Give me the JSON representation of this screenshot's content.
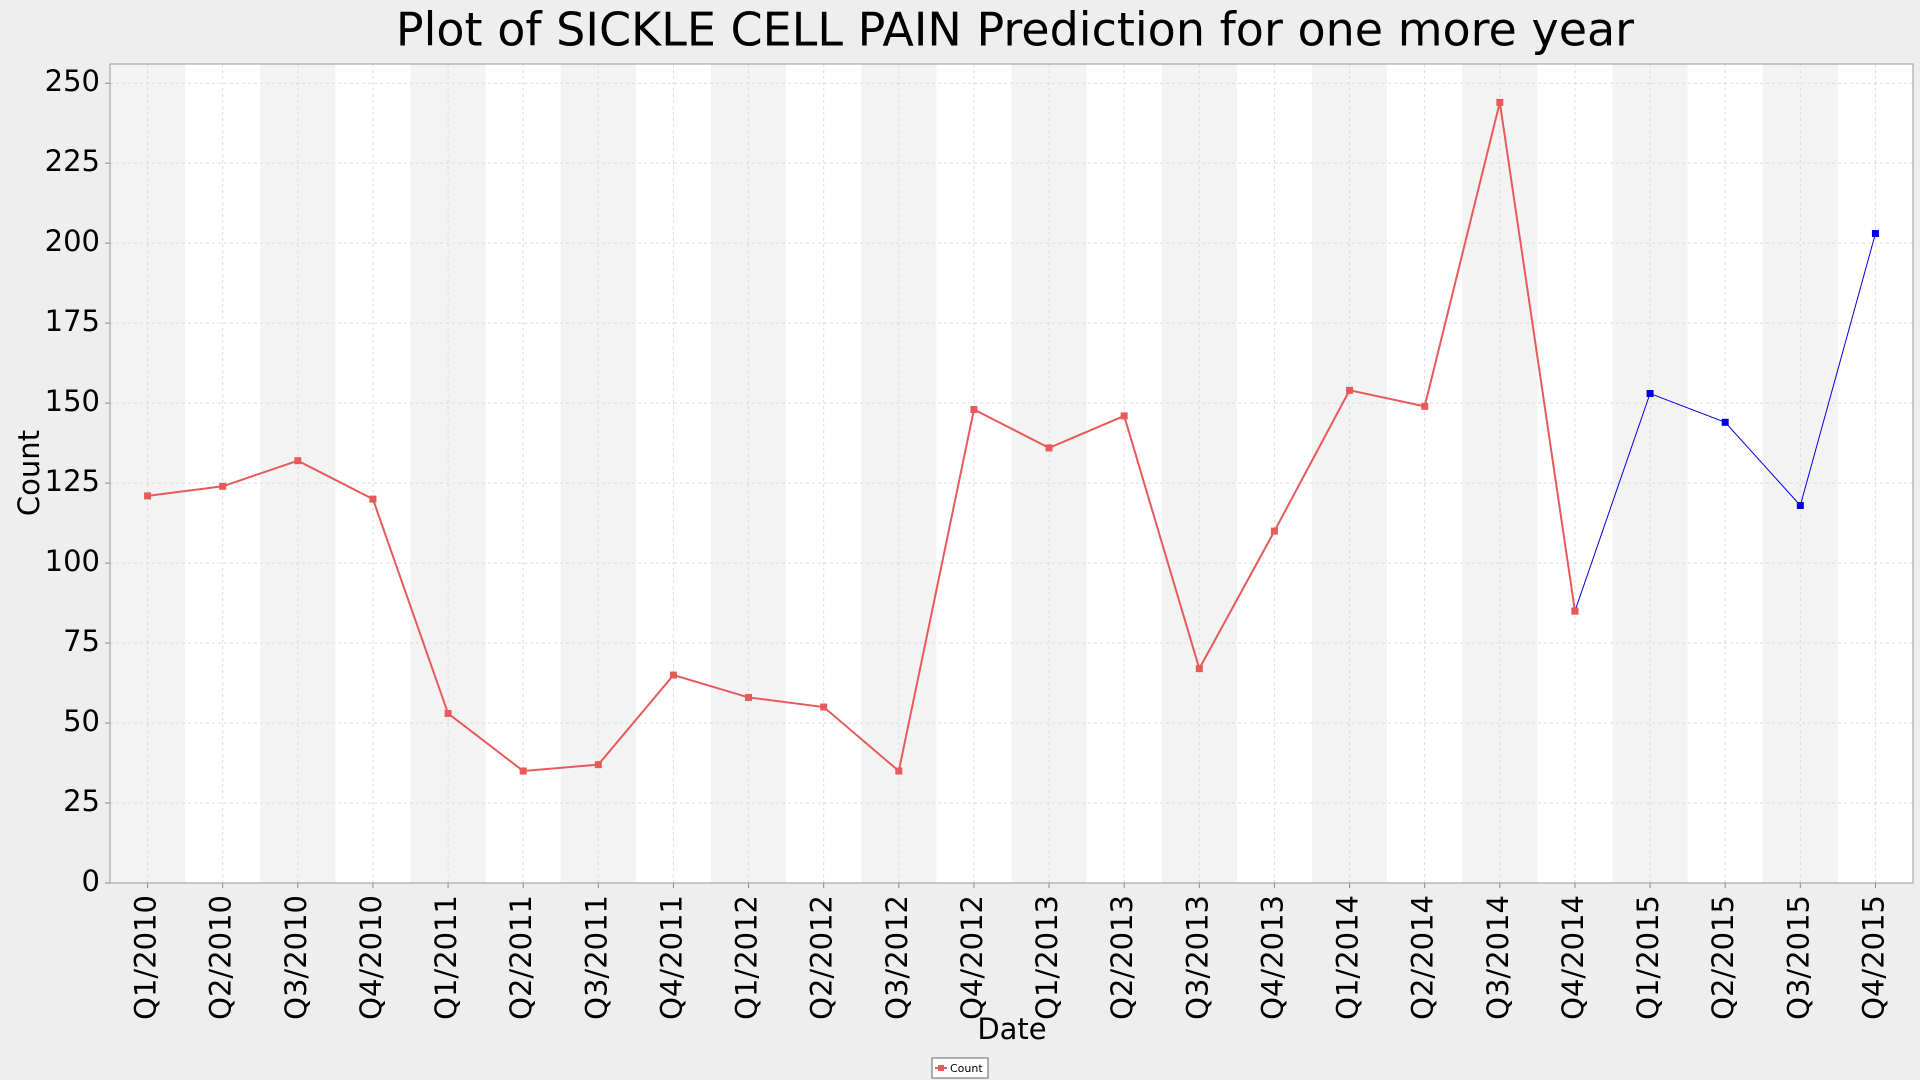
{
  "chart_data": {
    "type": "line",
    "title": "Plot of SICKLE CELL PAIN Prediction for one more year",
    "x_label": "Date",
    "y_label": "Count",
    "categories": [
      "Q1/2010",
      "Q2/2010",
      "Q3/2010",
      "Q4/2010",
      "Q1/2011",
      "Q2/2011",
      "Q3/2011",
      "Q4/2011",
      "Q1/2012",
      "Q2/2012",
      "Q3/2012",
      "Q4/2012",
      "Q1/2013",
      "Q2/2013",
      "Q3/2013",
      "Q4/2013",
      "Q1/2014",
      "Q2/2014",
      "Q3/2014",
      "Q4/2014",
      "Q1/2015",
      "Q2/2015",
      "Q3/2015",
      "Q4/2015"
    ],
    "series": [
      {
        "name": "Count",
        "color": "#e85a5a",
        "values": [
          121,
          124,
          132,
          120,
          53,
          35,
          37,
          65,
          58,
          55,
          35,
          148,
          136,
          146,
          67,
          110,
          154,
          149,
          244,
          85,
          null,
          null,
          null,
          null
        ]
      },
      {
        "color": "#0000dd",
        "values": [
          null,
          null,
          null,
          null,
          null,
          null,
          null,
          null,
          null,
          null,
          null,
          null,
          null,
          null,
          null,
          null,
          null,
          null,
          null,
          85,
          153,
          144,
          118,
          203
        ]
      }
    ],
    "ylim": [
      0,
      256
    ],
    "yticks": [
      0,
      25,
      50,
      75,
      100,
      125,
      150,
      175,
      200,
      225,
      250
    ],
    "grid": true,
    "legend": "bottom"
  }
}
